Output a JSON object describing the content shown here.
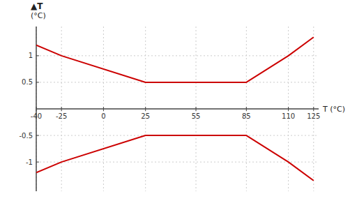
{
  "chart_data": {
    "type": "line",
    "x": [
      -40,
      -25,
      25,
      85,
      110,
      125
    ],
    "series": [
      {
        "color": "#cc0000",
        "values": [
          1.2,
          1.0,
          0.5,
          0.5,
          1.0,
          1.35
        ]
      },
      {
        "color": "#cc0000",
        "values": [
          -1.2,
          -1.0,
          -0.5,
          -0.5,
          -1.0,
          -1.35
        ]
      }
    ],
    "xlim": [
      -40,
      128
    ],
    "ylim": [
      -1.55,
      1.55
    ],
    "xticks": [
      -40,
      -25,
      0,
      25,
      55,
      85,
      110,
      125
    ],
    "yticks": [
      -1,
      -0.5,
      0.5,
      1
    ],
    "xlabel": "T (°C)",
    "ylabel": [
      "▲T",
      "(°C)"
    ],
    "grid": true
  }
}
